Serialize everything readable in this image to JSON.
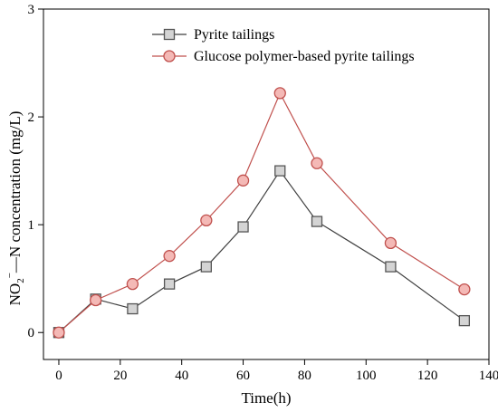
{
  "chart_data": {
    "type": "line",
    "xlabel": "Time(h)",
    "ylabel": {
      "base": "NO",
      "sub": "2",
      "sup": "−",
      "rest": "—N  concentration  (mg/L)"
    },
    "xlim": [
      -5,
      140
    ],
    "ylim": [
      -0.25,
      3
    ],
    "xticks": [
      0,
      20,
      40,
      60,
      80,
      100,
      120,
      140
    ],
    "yticks": [
      0,
      1,
      2,
      3
    ],
    "grid": false,
    "legend_position": "top-left",
    "series": [
      {
        "name": "Pyrite tailings",
        "marker": "square",
        "line_color": "#3f3f3f",
        "marker_fill": "#d4d4d4",
        "marker_stroke": "#555555",
        "x": [
          0,
          12,
          24,
          36,
          48,
          60,
          72,
          84,
          108,
          132
        ],
        "y": [
          0.0,
          0.31,
          0.22,
          0.45,
          0.61,
          0.98,
          1.5,
          1.03,
          0.61,
          0.11
        ]
      },
      {
        "name": "Glucose polymer-based pyrite tailings",
        "marker": "circle",
        "line_color": "#c0504d",
        "marker_fill": "#f4b9b6",
        "marker_stroke": "#c0504d",
        "x": [
          0,
          12,
          24,
          36,
          48,
          60,
          72,
          84,
          108,
          132
        ],
        "y": [
          0.0,
          0.3,
          0.45,
          0.71,
          1.04,
          1.41,
          2.22,
          1.57,
          0.83,
          0.4
        ]
      }
    ]
  }
}
